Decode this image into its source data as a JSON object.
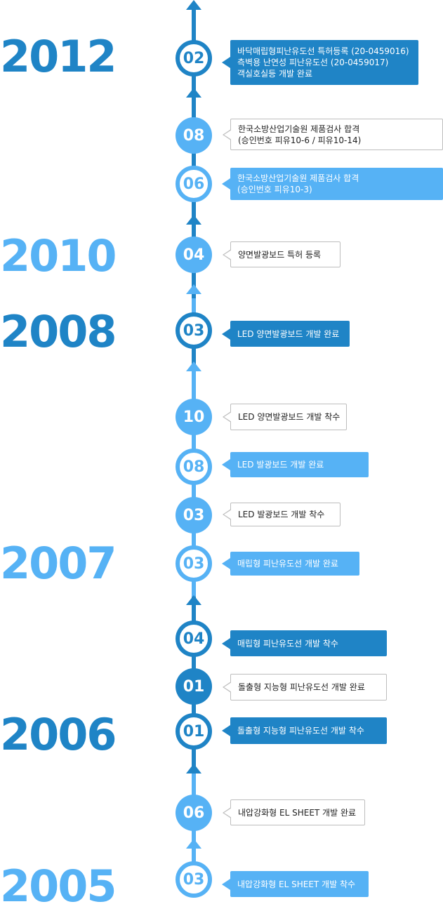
{
  "colors": {
    "dark": "#1f84c6",
    "light": "#56b2f5"
  },
  "years": [
    "2012",
    "2010",
    "2008",
    "2007",
    "2006",
    "2005"
  ],
  "events": [
    {
      "month": "02",
      "lines": [
        "바닥매립형피난유도선 특허등록 (20-0459016)",
        "측벽용 난연성 피난유도선 (20-0459017)",
        "객실호실등 개발 완료"
      ]
    },
    {
      "month": "08",
      "lines": [
        "한국소방산업기술원 제품검사 합격",
        "(승인번호 피유10-6 / 피유10-14)"
      ]
    },
    {
      "month": "06",
      "lines": [
        "한국소방산업기술원 제품검사 합격",
        "(승인번호 피유10-3)"
      ]
    },
    {
      "month": "04",
      "lines": [
        "양면발광보드 특허 등록"
      ]
    },
    {
      "month": "03",
      "lines": [
        "LED 양면발광보드 개발 완료"
      ]
    },
    {
      "month": "10",
      "lines": [
        "LED 양면발광보드 개발 착수"
      ]
    },
    {
      "month": "08",
      "lines": [
        "LED 발광보드 개발 완료"
      ]
    },
    {
      "month": "03",
      "lines": [
        "LED 발광보드 개발 착수"
      ]
    },
    {
      "month": "03",
      "lines": [
        "매립형 피난유도선 개발 완료"
      ]
    },
    {
      "month": "04",
      "lines": [
        "매립형 피난유도선 개발 착수"
      ]
    },
    {
      "month": "01",
      "lines": [
        "돌출형 지능형 피난유도선 개발 완료"
      ]
    },
    {
      "month": "01",
      "lines": [
        "돌출형 지능형 피난유도선 개발 착수"
      ]
    },
    {
      "month": "06",
      "lines": [
        "내압강화형 EL SHEET 개발 완료"
      ]
    },
    {
      "month": "03",
      "lines": [
        "내압강화형 EL SHEET 개발 착수"
      ]
    }
  ]
}
